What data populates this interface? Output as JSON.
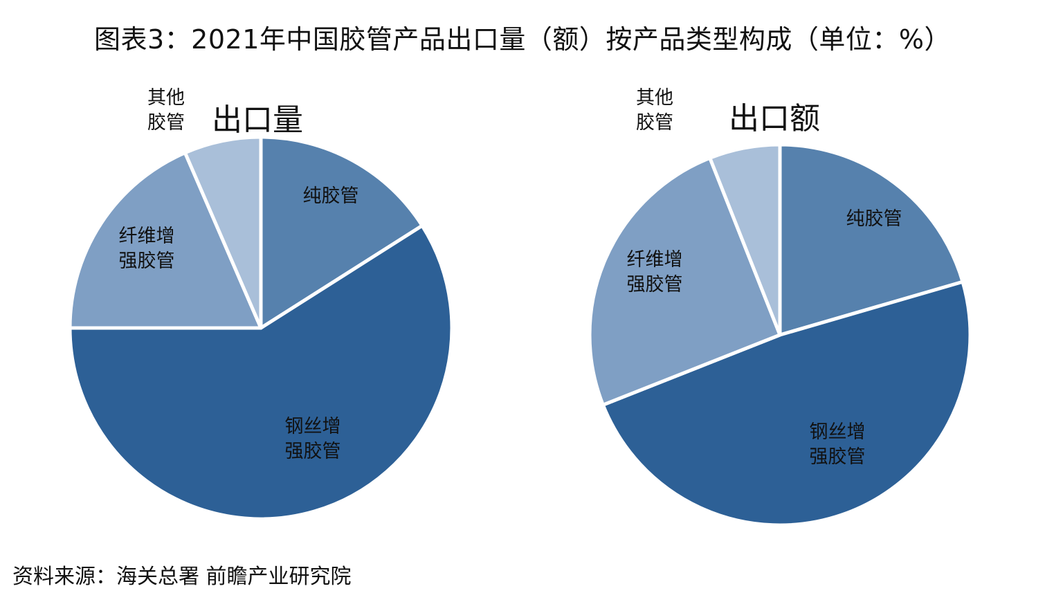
{
  "title": "图表3：2021年中国胶管产品出口量（额）按产品类型构成（单位：%）",
  "source": "资料来源：海关总署 前瞻产业研究院",
  "colors": {
    "纯胶管": "#5681ad",
    "钢丝增强胶管": "#2d6096",
    "纤维增强胶管": "#7f9fc4",
    "其他胶管": "#a9bfd9"
  },
  "chart_data": [
    {
      "type": "pie",
      "title": "出口量",
      "slices": [
        {
          "label": "纯胶管",
          "label_lines": [
            "纯胶管"
          ],
          "value": 16
        },
        {
          "label": "钢丝增强胶管",
          "label_lines": [
            "钢丝增",
            "强胶管"
          ],
          "value": 59
        },
        {
          "label": "纤维增强胶管",
          "label_lines": [
            "纤维增",
            "强胶管"
          ],
          "value": 18.5
        },
        {
          "label": "其他胶管",
          "label_lines": [
            "其他",
            "胶管"
          ],
          "value": 6.5
        }
      ]
    },
    {
      "type": "pie",
      "title": "出口额",
      "slices": [
        {
          "label": "纯胶管",
          "label_lines": [
            "纯胶管"
          ],
          "value": 20.5
        },
        {
          "label": "钢丝增强胶管",
          "label_lines": [
            "钢丝增",
            "强胶管"
          ],
          "value": 48.5
        },
        {
          "label": "纤维增强胶管",
          "label_lines": [
            "纤维增",
            "强胶管"
          ],
          "value": 25
        },
        {
          "label": "其他胶管",
          "label_lines": [
            "其他",
            "胶管"
          ],
          "value": 6
        }
      ]
    }
  ]
}
